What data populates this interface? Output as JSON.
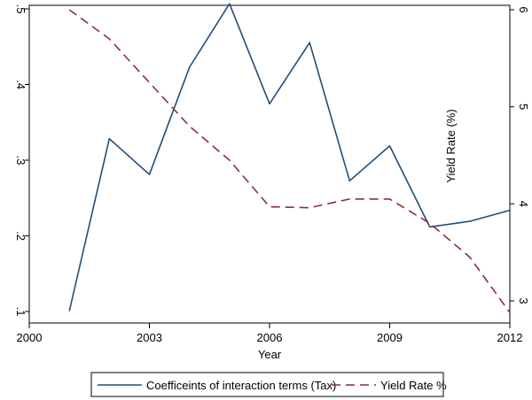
{
  "chart_data": {
    "type": "line",
    "xlabel": "Year",
    "ylabel_left": "",
    "ylabel_right": "Yield Rate (%)",
    "xlim": [
      2000,
      2012
    ],
    "xticks": [
      "2000",
      "2003",
      "2006",
      "2009",
      "2012"
    ],
    "ylim_left": [
      0.1,
      0.5
    ],
    "yticks_left": [
      ".1",
      ".2",
      ".3",
      ".4",
      ".5"
    ],
    "ylim_right": [
      3,
      6
    ],
    "yticks_right": [
      "3",
      "4",
      "5",
      "6"
    ],
    "grid": false,
    "legend_position": "bottom",
    "series": [
      {
        "name": "Coefficeints of interaction terms (Tax)",
        "axis": "left",
        "style": "solid",
        "color": "#1f4e79",
        "x": [
          2001,
          2002,
          2003,
          2004,
          2005,
          2006,
          2007,
          2008,
          2009,
          2010,
          2011,
          2012
        ],
        "y": [
          0.115,
          0.332,
          0.287,
          0.422,
          0.502,
          0.376,
          0.453,
          0.279,
          0.323,
          0.221,
          0.228,
          0.242
        ]
      },
      {
        "name": "Yield Rate %",
        "axis": "right",
        "style": "dashed",
        "color": "#8b2e3c",
        "x": [
          2001,
          2002,
          2003,
          2004,
          2005,
          2006,
          2007,
          2008,
          2009,
          2010,
          2011,
          2012
        ],
        "y": [
          6.0,
          5.7,
          5.25,
          4.8,
          4.45,
          3.97,
          3.96,
          4.05,
          4.05,
          3.8,
          3.45,
          2.88
        ]
      }
    ]
  }
}
